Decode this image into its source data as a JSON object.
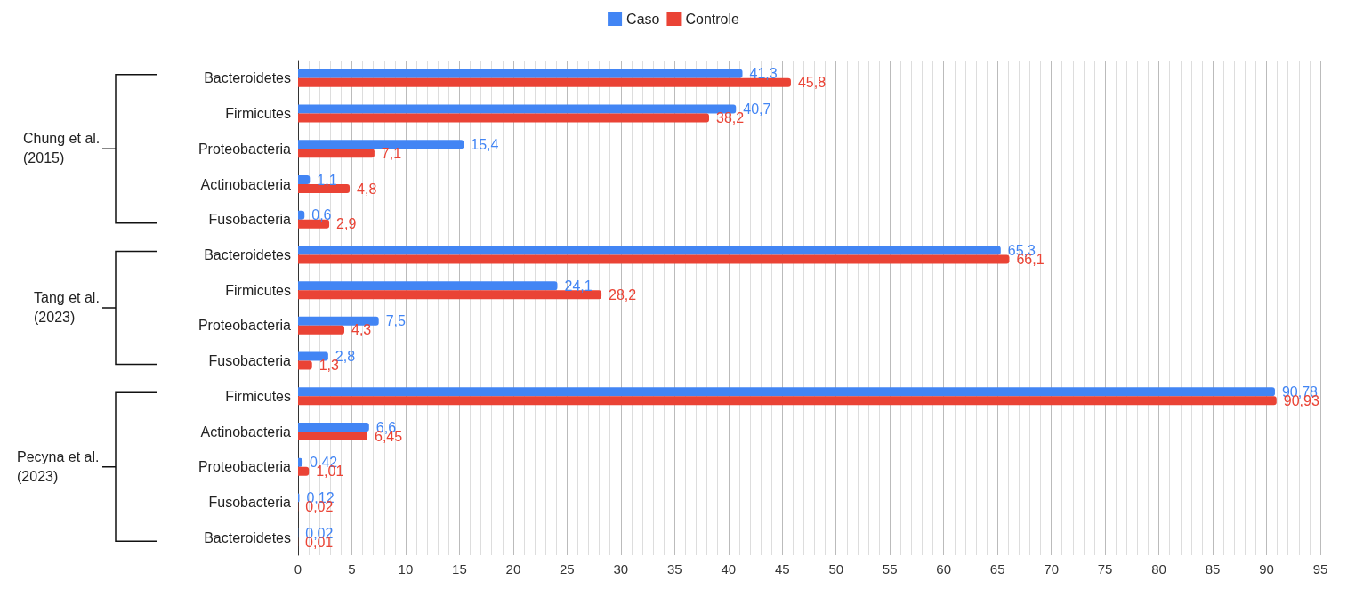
{
  "chart_data": {
    "type": "bar",
    "orientation": "horizontal",
    "categories": [
      "Bacteroidetes",
      "Firmicutes",
      "Proteobacteria",
      "Actinobacteria",
      "Fusobacteria",
      "Bacteroidetes",
      "Firmicutes",
      "Proteobacteria",
      "Fusobacteria",
      "Firmicutes",
      "Actinobacteria",
      "Proteobacteria",
      "Fusobacteria",
      "Bacteroidetes"
    ],
    "series": [
      {
        "name": "Caso",
        "color": "#4285f4",
        "values": [
          41.3,
          40.7,
          15.4,
          1.1,
          0.6,
          65.3,
          24.1,
          7.5,
          2.8,
          90.78,
          6.6,
          0.42,
          0.12,
          0.02
        ],
        "value_labels": [
          "41,3",
          "40,7",
          "15,4",
          "1,1",
          "0,6",
          "65,3",
          "24,1",
          "7,5",
          "2,8",
          "90,78",
          "6,6",
          "0,42",
          "0,12",
          "0,02"
        ]
      },
      {
        "name": "Controle",
        "color": "#ea4335",
        "values": [
          45.8,
          38.2,
          7.1,
          4.8,
          2.9,
          66.1,
          28.2,
          4.3,
          1.3,
          90.93,
          6.45,
          1.01,
          0.02,
          0.01
        ],
        "value_labels": [
          "45,8",
          "38,2",
          "7,1",
          "4,8",
          "2,9",
          "66,1",
          "28,2",
          "4,3",
          "1,3",
          "90,93",
          "6,45",
          "1,01",
          "0,02",
          "0,01"
        ]
      }
    ],
    "xlim": [
      0,
      95
    ],
    "xticks": [
      0,
      5,
      10,
      15,
      20,
      25,
      30,
      35,
      40,
      45,
      50,
      55,
      60,
      65,
      70,
      75,
      80,
      85,
      90,
      95
    ],
    "grid": "x",
    "legend": "top",
    "annotations": [
      "Chung et al.\n(2015)",
      "Tang et al.\n(2023)",
      "Pecyna et al.\n(2023)"
    ]
  }
}
